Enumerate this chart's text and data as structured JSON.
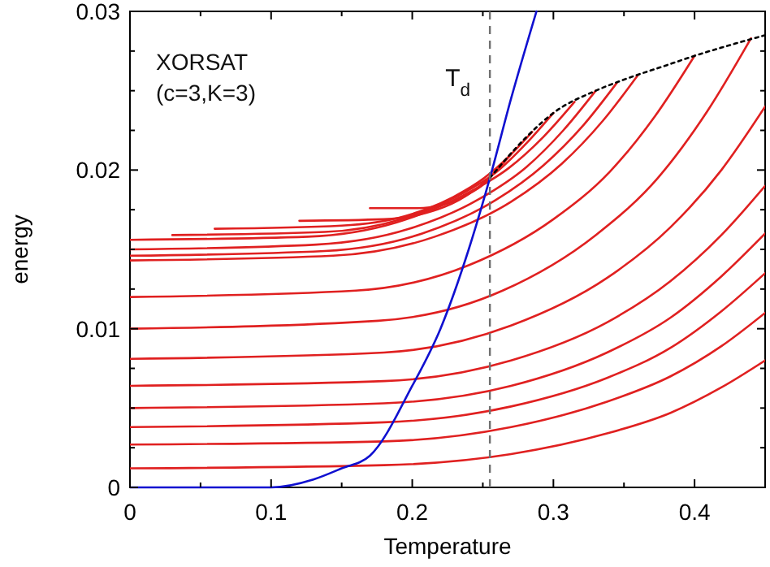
{
  "chart_data": {
    "type": "line",
    "xlabel": "Temperature",
    "ylabel": "energy",
    "xlim": [
      0,
      0.45
    ],
    "ylim": [
      0,
      0.03
    ],
    "xticks": [
      0,
      {
        "value": 0.05,
        "label": null
      },
      0.1,
      {
        "value": 0.15,
        "label": null
      },
      0.2,
      {
        "value": 0.25,
        "label": null
      },
      0.3,
      {
        "value": 0.35,
        "label": null
      },
      0.4
    ],
    "yticks": [
      0,
      {
        "value": 0.0025,
        "label": null
      },
      {
        "value": 0.005,
        "label": null
      },
      {
        "value": 0.0075,
        "label": null
      },
      0.01,
      {
        "value": 0.0125,
        "label": null
      },
      {
        "value": 0.015,
        "label": null
      },
      {
        "value": 0.0175,
        "label": null
      },
      0.02,
      {
        "value": 0.0225,
        "label": null
      },
      {
        "value": 0.025,
        "label": null
      },
      {
        "value": 0.0275,
        "label": null
      },
      0.03
    ],
    "grid": false,
    "marker": "none",
    "line_style": "solid",
    "annotations": [
      "XORSAT",
      "(c=3,K=3)"
    ],
    "ref_lines": [
      {
        "axis": "x",
        "value": 0.255,
        "label": "T$_{d}$",
        "color": "#707070",
        "line_style": "dashed"
      }
    ],
    "series": [
      {
        "color": "#e02020",
        "x": [
          0.17,
          0.204,
          0.221,
          0.234,
          0.242,
          0.249,
          0.255
        ],
        "values": [
          0.0176,
          0.0176,
          0.0178,
          0.0182,
          0.0186,
          0.019,
          0.0195
        ]
      },
      {
        "color": "#e02020",
        "x": [
          0.12,
          0.18,
          0.21,
          0.233,
          0.248,
          0.26,
          0.27
        ],
        "values": [
          0.0168,
          0.0169,
          0.0173,
          0.0181,
          0.019,
          0.02,
          0.021
        ]
      },
      {
        "color": "#e02020",
        "x": [
          0.06,
          0.15,
          0.195,
          0.229,
          0.251,
          0.269,
          0.285
        ],
        "values": [
          0.0163,
          0.0165,
          0.0171,
          0.0183,
          0.0195,
          0.0209,
          0.0224
        ]
      },
      {
        "color": "#e02020",
        "x": [
          0.03,
          0.138,
          0.192,
          0.233,
          0.26,
          0.281,
          0.3
        ],
        "values": [
          0.0159,
          0.0161,
          0.0169,
          0.0184,
          0.0199,
          0.0217,
          0.0236
        ]
      },
      {
        "color": "#e02020",
        "x": [
          0,
          0.126,
          0.189,
          0.236,
          0.268,
          0.293,
          0.315
        ],
        "values": [
          0.0156,
          0.0158,
          0.0167,
          0.0184,
          0.0201,
          0.0221,
          0.0243
        ]
      },
      {
        "color": "#e02020",
        "x": [
          0,
          0.132,
          0.198,
          0.248,
          0.281,
          0.307,
          0.33
        ],
        "values": [
          0.015,
          0.0153,
          0.0163,
          0.0182,
          0.0202,
          0.0225,
          0.025
        ]
      },
      {
        "color": "#e02020",
        "x": [
          0,
          0.138,
          0.207,
          0.259,
          0.293,
          0.321,
          0.345
        ],
        "values": [
          0.0146,
          0.0149,
          0.016,
          0.0181,
          0.0203,
          0.0228,
          0.0255
        ]
      },
      {
        "color": "#e02020",
        "x": [
          0,
          0.144,
          0.216,
          0.27,
          0.306,
          0.335,
          0.36
        ],
        "values": [
          0.0143,
          0.0146,
          0.0158,
          0.018,
          0.0204,
          0.0231,
          0.026
        ]
      },
      {
        "color": "#e02020",
        "x": [
          0,
          0.16,
          0.24,
          0.3,
          0.34,
          0.372,
          0.4
        ],
        "values": [
          0.012,
          0.0124,
          0.014,
          0.0169,
          0.0199,
          0.0234,
          0.0272
        ]
      },
      {
        "color": "#e02020",
        "x": [
          0,
          0.176,
          0.264,
          0.33,
          0.374,
          0.409,
          0.44
        ],
        "values": [
          0.01,
          0.0105,
          0.0124,
          0.0159,
          0.0195,
          0.0237,
          0.0283
        ]
      },
      {
        "color": "#e02020",
        "x": [
          0,
          0.18,
          0.27,
          0.338,
          0.383,
          0.419,
          0.45
        ],
        "values": [
          0.0081,
          0.0085,
          0.0102,
          0.0132,
          0.0164,
          0.02,
          0.024
        ]
      },
      {
        "color": "#e02020",
        "x": [
          0,
          0.18,
          0.27,
          0.338,
          0.383,
          0.419,
          0.45
        ],
        "values": [
          0.0064,
          0.0067,
          0.008,
          0.0104,
          0.013,
          0.0159,
          0.019
        ]
      },
      {
        "color": "#e02020",
        "x": [
          0,
          0.18,
          0.27,
          0.338,
          0.383,
          0.419,
          0.45
        ],
        "values": [
          0.005,
          0.0053,
          0.0064,
          0.0085,
          0.0107,
          0.0133,
          0.016
        ]
      },
      {
        "color": "#e02020",
        "x": [
          0,
          0.18,
          0.27,
          0.338,
          0.383,
          0.419,
          0.45
        ],
        "values": [
          0.0038,
          0.0041,
          0.0051,
          0.0069,
          0.0088,
          0.0111,
          0.0135
        ]
      },
      {
        "color": "#e02020",
        "x": [
          0,
          0.18,
          0.27,
          0.338,
          0.383,
          0.419,
          0.45
        ],
        "values": [
          0.0027,
          0.0029,
          0.0038,
          0.0054,
          0.007,
          0.0089,
          0.011
        ]
      },
      {
        "color": "#e02020",
        "x": [
          0,
          0.18,
          0.27,
          0.338,
          0.383,
          0.419,
          0.45
        ],
        "values": [
          0.0012,
          0.0014,
          0.0021,
          0.0034,
          0.0047,
          0.0063,
          0.008
        ]
      },
      {
        "color": "#1010d0",
        "x": [
          0,
          0.1,
          0.13,
          0.15,
          0.17,
          0.2,
          0.22,
          0.24,
          0.255,
          0.27,
          0.288
        ],
        "values": [
          0,
          0,
          0.0005,
          0.0012,
          0.002,
          0.0064,
          0.01,
          0.015,
          0.0195,
          0.0245,
          0.03
        ]
      },
      {
        "color": "#000000",
        "line_style": "dotted",
        "x": [
          0.255,
          0.28,
          0.3,
          0.33,
          0.35,
          0.38,
          0.4,
          0.43,
          0.45
        ],
        "values": [
          0.0195,
          0.022,
          0.0236,
          0.025,
          0.0257,
          0.0266,
          0.0272,
          0.028,
          0.0285
        ]
      }
    ]
  }
}
